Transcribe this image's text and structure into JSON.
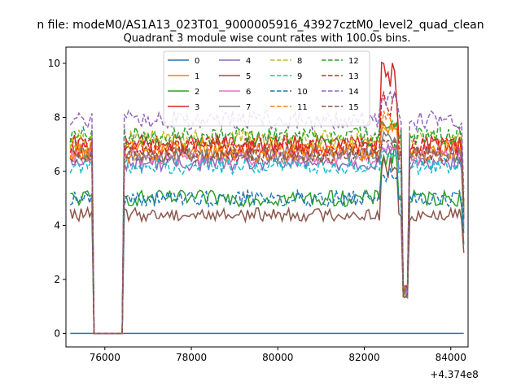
{
  "chart_data": {
    "type": "line",
    "suptitle": "n file: modeM0/AS1A13_023T01_9000005916_43927cztM0_level2_quad_clean",
    "title": "Quadrant 3 module wise count rates with 100.0s bins.",
    "xlabel": "",
    "ylabel": "",
    "x_offset_label": "+4.374e8",
    "xlim": [
      75100,
      84400
    ],
    "ylim": [
      -0.5,
      10.6
    ],
    "xticks": [
      76000,
      78000,
      80000,
      82000,
      84000
    ],
    "xtick_labels": [
      "76000",
      "78000",
      "80000",
      "82000",
      "84000"
    ],
    "yticks": [
      0,
      2,
      4,
      6,
      8,
      10
    ],
    "ytick_labels": [
      "0",
      "2",
      "4",
      "6",
      "8",
      "10"
    ],
    "grid": false,
    "legend_position": "upper center",
    "legend_columns": 4,
    "x": [
      75200,
      76400,
      82500,
      84300
    ],
    "gaps": [
      [
        75700,
        76450
      ]
    ],
    "dip": 82950,
    "series": [
      {
        "name": "0",
        "color": "#1f77b4",
        "dash": false,
        "base": 0,
        "noise": 0,
        "spike": 0
      },
      {
        "name": "1",
        "color": "#ff7f0e",
        "dash": false,
        "base": 6.8,
        "noise": 0.35,
        "spike": 7.8
      },
      {
        "name": "2",
        "color": "#2ca02c",
        "dash": false,
        "base": 5.0,
        "noise": 0.3,
        "spike": 7.2
      },
      {
        "name": "3",
        "color": "#d62728",
        "dash": false,
        "base": 7.0,
        "noise": 0.35,
        "spike": 10.1
      },
      {
        "name": "4",
        "color": "#9467bd",
        "dash": false,
        "base": 6.3,
        "noise": 0.3,
        "spike": 7.0
      },
      {
        "name": "5",
        "color": "#8c564b",
        "dash": false,
        "base": 4.4,
        "noise": 0.25,
        "spike": 6.6
      },
      {
        "name": "6",
        "color": "#e377c2",
        "dash": false,
        "base": 6.5,
        "noise": 0.3,
        "spike": 7.0
      },
      {
        "name": "7",
        "color": "#7f7f7f",
        "dash": false,
        "base": 6.6,
        "noise": 0.3,
        "spike": 7.5
      },
      {
        "name": "8",
        "color": "#bcbd22",
        "dash": true,
        "base": 7.2,
        "noise": 0.35,
        "spike": 7.8
      },
      {
        "name": "9",
        "color": "#17becf",
        "dash": true,
        "base": 6.2,
        "noise": 0.3,
        "spike": 6.8
      },
      {
        "name": "10",
        "color": "#1f77b4",
        "dash": true,
        "base": 5.0,
        "noise": 0.3,
        "spike": 6.2
      },
      {
        "name": "11",
        "color": "#ff7f0e",
        "dash": true,
        "base": 6.7,
        "noise": 0.35,
        "spike": 8.3
      },
      {
        "name": "12",
        "color": "#2ca02c",
        "dash": true,
        "base": 7.3,
        "noise": 0.35,
        "spike": 7.9
      },
      {
        "name": "13",
        "color": "#d62728",
        "dash": true,
        "base": 6.9,
        "noise": 0.35,
        "spike": 9.0
      },
      {
        "name": "14",
        "color": "#9467bd",
        "dash": true,
        "base": 7.9,
        "noise": 0.35,
        "spike": 9.0
      },
      {
        "name": "15",
        "color": "#8c564b",
        "dash": true,
        "base": 6.6,
        "noise": 0.3,
        "spike": 7.2
      }
    ]
  }
}
